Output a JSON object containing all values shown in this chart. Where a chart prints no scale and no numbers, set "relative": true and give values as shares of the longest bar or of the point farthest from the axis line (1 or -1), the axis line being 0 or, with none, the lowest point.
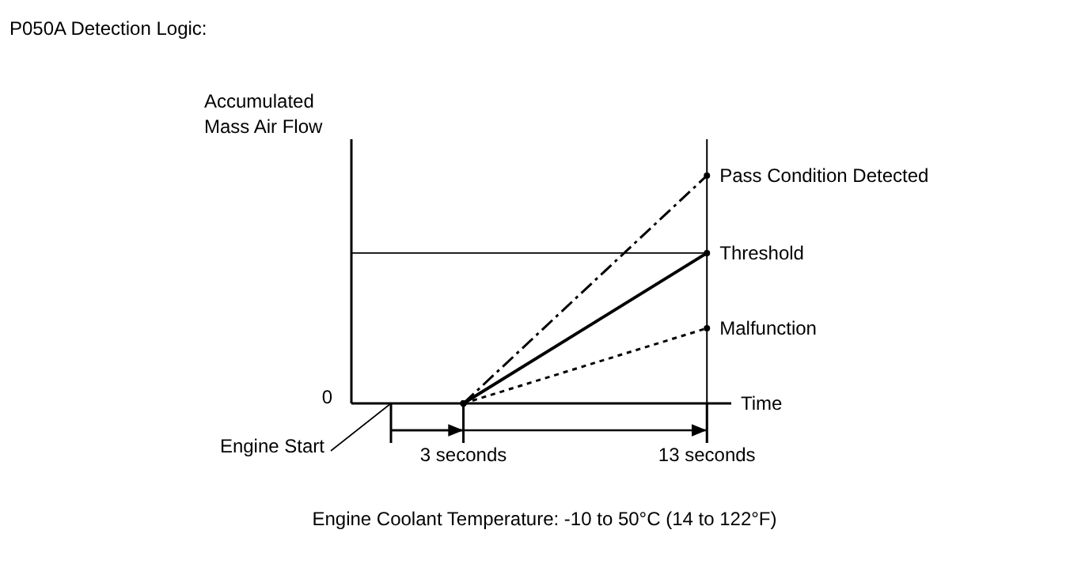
{
  "chart_data": {
    "type": "line",
    "title": "P050A Detection Logic:",
    "ylabel": "Accumulated Mass Air Flow",
    "xlabel": "Time",
    "relative": true,
    "xlim": [
      -1.6,
      14
    ],
    "xticks": [
      {
        "value": 3,
        "label": "3 seconds"
      },
      {
        "value": 13,
        "label": "13 seconds"
      }
    ],
    "marker": "circle",
    "x": [
      3,
      13
    ],
    "series": [
      {
        "name": "Pass Condition Detected",
        "color": "#000000",
        "values": [
          0,
          1
        ],
        "line_style": "dashdot"
      },
      {
        "name": "Threshold",
        "color": "#000000",
        "values": [
          0,
          0.66
        ],
        "line_style": "solid"
      },
      {
        "name": "Malfunction",
        "color": "#000000",
        "values": [
          0,
          0.33
        ],
        "line_style": "dotted"
      }
    ],
    "ref_lines": [
      {
        "axis": "y",
        "value": 0.66,
        "color": "#000000"
      },
      {
        "axis": "x",
        "value": 13,
        "color": "#000000"
      }
    ],
    "annotations": [
      "0",
      "Engine Start",
      "Engine Coolant Temperature: -10 to 50°C (14 to 122°F)"
    ]
  }
}
